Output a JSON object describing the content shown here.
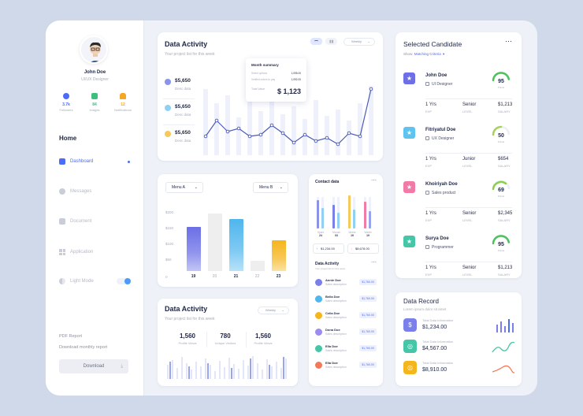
{
  "profile": {
    "name": "John Doe",
    "role": "UI/UX Designer"
  },
  "stats": [
    {
      "value": "3.7k",
      "label": "Followers",
      "color": "#4a6cf7"
    },
    {
      "value": "84",
      "label": "Images",
      "color": "#3fbf7f"
    },
    {
      "value": "12",
      "label": "Notifications",
      "color": "#f5a623"
    }
  ],
  "nav": {
    "home": "Home",
    "items": [
      {
        "label": "Dashboard",
        "icon": "home-icon"
      },
      {
        "label": "Messages",
        "icon": "message-icon"
      },
      {
        "label": "Document",
        "icon": "document-icon"
      },
      {
        "label": "Application",
        "icon": "grid-icon"
      },
      {
        "label": "Light Mode",
        "icon": "half-circle-icon"
      }
    ]
  },
  "pdf": {
    "title": "PDF Report",
    "subtitle": "Download monthly report",
    "button": "Download"
  },
  "activity_top": {
    "title": "Data Activity",
    "subtitle": "Your project list for this week",
    "filter": "Weekly",
    "amounts": [
      {
        "value": "$5,650",
        "desc": "Desc data",
        "color": "#8b93e8"
      },
      {
        "value": "$5,650",
        "desc": "Desc data",
        "color": "#8fd0f3"
      },
      {
        "value": "$5,650",
        "desc": "Desc data",
        "color": "#f7c85a"
      }
    ],
    "summary": {
      "title": "Month summary",
      "rows": [
        {
          "label": "Select options",
          "value": "1,095.00"
        },
        {
          "label": "Verified orders to pay",
          "value": "1,092.00"
        }
      ],
      "total_label": "Total Value",
      "total": "$ 1,123"
    }
  },
  "menus": {
    "a": "Menu A",
    "b": "Menu B"
  },
  "bar_chart": {
    "type": "bar",
    "categories": [
      "19",
      "20",
      "21",
      "22",
      "23"
    ],
    "values": [
      150,
      195,
      175,
      35,
      105
    ],
    "yticks": [
      "$200",
      "$150",
      "$100",
      "$50",
      "0"
    ],
    "ylim": [
      0,
      200
    ],
    "colors": [
      "#6a6fe6",
      "#eeeeee",
      "#4fb6ee",
      "#eeeeee",
      "#f5b51c"
    ]
  },
  "contact": {
    "title": "Contact data",
    "bars": [
      {
        "label": "Spent",
        "value": "24"
      },
      {
        "label": "Mouse",
        "value": "03"
      },
      {
        "label": "Meets",
        "value": "19"
      },
      {
        "label": "Wallet",
        "value": "19"
      }
    ],
    "amounts": [
      "$1,234.00",
      "$8,678.00"
    ]
  },
  "contact_activity": {
    "title": "Data Activity",
    "subtitle": "Your project list for this week",
    "rows": [
      {
        "name": "Annie Doe",
        "desc": "Sales description",
        "value": "$1,760.00",
        "color": "#7b7fea"
      },
      {
        "name": "Bella Doe",
        "desc": "Sales description",
        "value": "$1,760.00",
        "color": "#4fb6ee"
      },
      {
        "name": "Celia Doe",
        "desc": "Sales description",
        "value": "$1,760.00",
        "color": "#f5b51c"
      },
      {
        "name": "Dona Doe",
        "desc": "Sales description",
        "value": "$1,760.00",
        "color": "#9a8cf0"
      },
      {
        "name": "Ella Doe",
        "desc": "Sales description",
        "value": "$1,760.00",
        "color": "#45c7a7"
      },
      {
        "name": "Ella Doe",
        "desc": "Sales description",
        "value": "$1,760.00",
        "color": "#f27a5a"
      }
    ]
  },
  "activity_bottom": {
    "title": "Data Activity",
    "subtitle": "Your project list for this week",
    "filter": "Weekly",
    "metrics": [
      {
        "value": "1,560",
        "label": "Profile Views"
      },
      {
        "value": "780",
        "label": "Unique Visitors"
      },
      {
        "value": "1,560",
        "label": "Profile Views"
      }
    ]
  },
  "candidates": {
    "title": "Selected Candidate",
    "filter_prefix": "Show:",
    "filter": "Matching Criteria",
    "items": [
      {
        "name": "John Doe",
        "role": "UI Designer",
        "score": "95",
        "score_label": "Points",
        "exp": "1 Yrs",
        "level": "Senior",
        "salary": "$1,213",
        "star_color": "#6e6ee6"
      },
      {
        "name": "Fitriyatul Doe",
        "role": "UX Designer",
        "score": "50",
        "score_label": "Points",
        "exp": "1 Yrs",
        "level": "Junior",
        "salary": "$654",
        "star_color": "#5fc3ef"
      },
      {
        "name": "Khoiriyah Doe",
        "role": "Sales product",
        "score": "69",
        "score_label": "Points",
        "exp": "1 Yrs",
        "level": "Senior",
        "salary": "$2,345",
        "star_color": "#f27aa6"
      },
      {
        "name": "Surya Doe",
        "role": "Programmer",
        "score": "95",
        "score_label": "Points",
        "exp": "1 Yrs",
        "level": "Senior",
        "salary": "$1,213",
        "star_color": "#45c7a7"
      }
    ],
    "labels": {
      "exp": "EXP",
      "level": "LEVEL",
      "salary": "SALARY"
    }
  },
  "data_record": {
    "title": "Data Record",
    "subtitle": "Lorem ipsum dolor sit amet",
    "rows": [
      {
        "label": "Total Data Information",
        "value": "$1,234.00",
        "color": "#7b7fea"
      },
      {
        "label": "Total Data Information",
        "value": "$4,567.00",
        "color": "#45c7a7"
      },
      {
        "label": "Total Data Information",
        "value": "$8,910.00",
        "color": "#f5b51c"
      }
    ]
  }
}
